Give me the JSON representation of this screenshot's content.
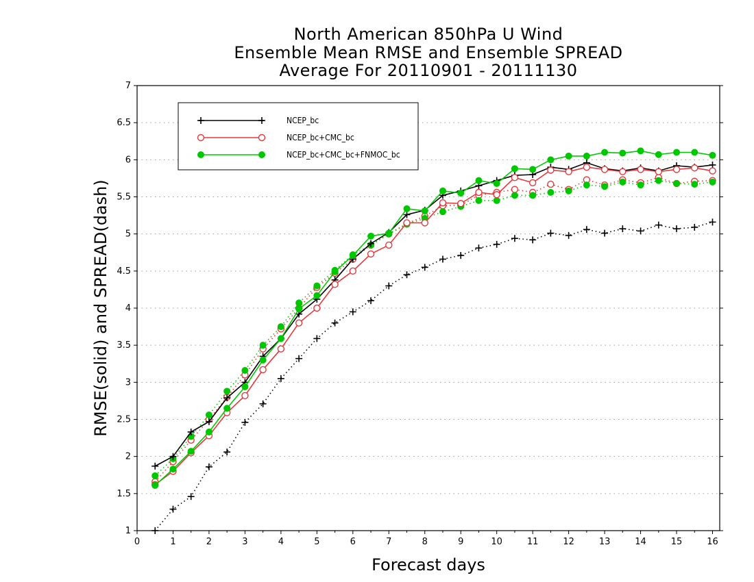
{
  "chart_data": {
    "type": "line",
    "title_lines": [
      "North American 850hPa U Wind",
      "Ensemble Mean RMSE and Ensemble SPREAD",
      "Average For 20110901 - 20111130"
    ],
    "xlabel": "Forecast days",
    "ylabel": "RMSE(solid) and SPREAD(dash)",
    "xlim": [
      0,
      16.2
    ],
    "ylim": [
      1,
      7
    ],
    "xticks": [
      0,
      1,
      2,
      3,
      4,
      5,
      6,
      7,
      8,
      9,
      10,
      11,
      12,
      13,
      14,
      15,
      16
    ],
    "yticks": [
      1,
      1.5,
      2,
      2.5,
      3,
      3.5,
      4,
      4.5,
      5,
      5.5,
      6,
      6.5,
      7
    ],
    "grid": "horizontal dotted",
    "legend_position": "top-left",
    "x": [
      0.5,
      1,
      1.5,
      2,
      2.5,
      3,
      3.5,
      4,
      4.5,
      5,
      5.5,
      6,
      6.5,
      7,
      7.5,
      8,
      8.5,
      9,
      9.5,
      10,
      10.5,
      11,
      11.5,
      12,
      12.5,
      13,
      13.5,
      14,
      14.5,
      15,
      15.5,
      16
    ],
    "series": [
      {
        "name": "NCEP_bc",
        "color": "#000000",
        "marker": "plus",
        "rmse": [
          1.87,
          2.0,
          2.33,
          2.47,
          2.79,
          3.0,
          3.35,
          3.59,
          3.92,
          4.12,
          4.38,
          4.66,
          4.87,
          5.02,
          5.26,
          5.32,
          5.52,
          5.58,
          5.65,
          5.72,
          5.79,
          5.8,
          5.9,
          5.87,
          5.96,
          5.88,
          5.85,
          5.89,
          5.85,
          5.92,
          5.9,
          5.93
        ],
        "spread": [
          1.0,
          1.29,
          1.46,
          1.86,
          2.06,
          2.46,
          2.71,
          3.05,
          3.32,
          3.59,
          3.8,
          3.95,
          4.1,
          4.3,
          4.45,
          4.55,
          4.66,
          4.71,
          4.81,
          4.86,
          4.94,
          4.92,
          5.01,
          4.98,
          5.06,
          5.01,
          5.07,
          5.04,
          5.12,
          5.07,
          5.09,
          5.16
        ]
      },
      {
        "name": "NCEP_bc+CMC_bc",
        "color": "#e8373c",
        "marker": "open-circle",
        "rmse": [
          1.62,
          1.8,
          2.05,
          2.28,
          2.59,
          2.82,
          3.17,
          3.45,
          3.8,
          4.0,
          4.32,
          4.5,
          4.73,
          4.85,
          5.15,
          5.15,
          5.42,
          5.41,
          5.56,
          5.53,
          5.76,
          5.69,
          5.86,
          5.84,
          5.9,
          5.87,
          5.84,
          5.87,
          5.84,
          5.87,
          5.89,
          5.85
        ],
        "spread": [
          1.66,
          1.93,
          2.22,
          2.5,
          2.8,
          3.1,
          3.45,
          3.72,
          4.0,
          4.28,
          4.47,
          4.66,
          4.85,
          5.0,
          5.14,
          5.24,
          5.38,
          5.39,
          5.52,
          5.56,
          5.6,
          5.56,
          5.67,
          5.6,
          5.73,
          5.66,
          5.73,
          5.69,
          5.76,
          5.68,
          5.71,
          5.72
        ]
      },
      {
        "name": "NCEP_bc+CMC_bc+FNMOC_bc",
        "color": "#00c800",
        "marker": "filled-circle",
        "rmse": [
          1.61,
          1.83,
          2.07,
          2.33,
          2.65,
          2.94,
          3.3,
          3.59,
          3.99,
          4.17,
          4.49,
          4.71,
          4.97,
          5.01,
          5.34,
          5.31,
          5.58,
          5.55,
          5.72,
          5.68,
          5.88,
          5.87,
          6.0,
          6.05,
          6.05,
          6.1,
          6.09,
          6.12,
          6.07,
          6.1,
          6.1,
          6.06
        ],
        "spread": [
          1.74,
          1.97,
          2.27,
          2.56,
          2.88,
          3.16,
          3.5,
          3.75,
          4.07,
          4.3,
          4.51,
          4.72,
          4.85,
          5.0,
          5.13,
          5.21,
          5.3,
          5.37,
          5.45,
          5.45,
          5.52,
          5.52,
          5.56,
          5.58,
          5.66,
          5.64,
          5.7,
          5.66,
          5.72,
          5.68,
          5.67,
          5.7
        ]
      }
    ]
  }
}
